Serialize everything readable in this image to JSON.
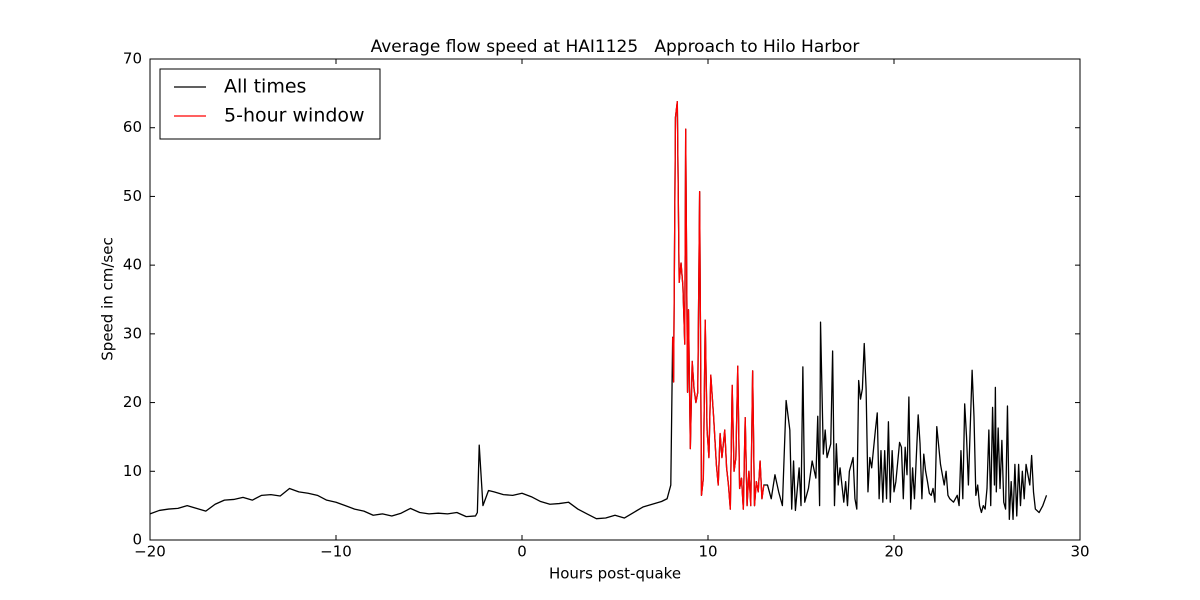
{
  "chart_data": {
    "type": "line",
    "title": "Average flow speed at HAI1125   Approach to Hilo Harbor",
    "x_label": "Hours post-quake",
    "y_label": "Speed in cm/sec",
    "xlim": [
      -20,
      30
    ],
    "ylim": [
      0,
      70
    ],
    "xticks": [
      {
        "value": -20,
        "label": "−20"
      },
      {
        "value": -10,
        "label": "−10"
      },
      0,
      10,
      20,
      30
    ],
    "yticks": [
      0,
      10,
      20,
      30,
      40,
      50,
      60,
      70
    ],
    "legend": "upper left",
    "series": [
      {
        "name": "All times",
        "color": "#000000",
        "x": [
          -20,
          -19.5,
          -19,
          -18.5,
          -18,
          -17.5,
          -17,
          -16.5,
          -16,
          -15.5,
          -15,
          -14.5,
          -14,
          -13.5,
          -13,
          -12.5,
          -12,
          -11.5,
          -11,
          -10.5,
          -10,
          -9.5,
          -9,
          -8.5,
          -8,
          -7.5,
          -7,
          -6.5,
          -6,
          -5.5,
          -5,
          -4.5,
          -4,
          -3.5,
          -3,
          -2.5,
          -2.4,
          -2.3,
          -2.1,
          -1.8,
          -1.5,
          -1,
          -0.5,
          0,
          0.5,
          1,
          1.5,
          2,
          2.5,
          3,
          3.5,
          4,
          4.5,
          5,
          5.5,
          6,
          6.5,
          7,
          7.5,
          7.8,
          8.0,
          8.1,
          8.15,
          8.25,
          8.35,
          8.45,
          8.55,
          8.65,
          8.75,
          8.8,
          8.9,
          8.95,
          9.05,
          9.15,
          9.25,
          9.35,
          9.45,
          9.55,
          9.65,
          9.75,
          9.85,
          9.95,
          10.05,
          10.15,
          10.3,
          10.45,
          10.55,
          10.65,
          10.75,
          10.9,
          11.0,
          11.1,
          11.2,
          11.3,
          11.4,
          11.5,
          11.6,
          11.7,
          11.8,
          11.9,
          12.0,
          12.1,
          12.2,
          12.3,
          12.4,
          12.5,
          12.6,
          12.7,
          12.8,
          12.9,
          13.0,
          13.2,
          13.4,
          13.6,
          13.8,
          14.0,
          14.2,
          14.4,
          14.5,
          14.6,
          14.7,
          14.9,
          15.0,
          15.1,
          15.2,
          15.4,
          15.6,
          15.8,
          15.9,
          16.0,
          16.05,
          16.2,
          16.3,
          16.4,
          16.6,
          16.7,
          16.8,
          16.9,
          17.0,
          17.1,
          17.3,
          17.4,
          17.5,
          17.6,
          17.8,
          17.9,
          18.0,
          18.1,
          18.2,
          18.3,
          18.4,
          18.5,
          18.6,
          18.7,
          18.8,
          19.0,
          19.1,
          19.2,
          19.3,
          19.4,
          19.5,
          19.6,
          19.7,
          19.8,
          19.9,
          20.0,
          20.1,
          20.3,
          20.4,
          20.5,
          20.6,
          20.7,
          20.8,
          20.9,
          21.0,
          21.1,
          21.3,
          21.4,
          21.5,
          21.6,
          21.7,
          21.8,
          21.9,
          22.0,
          22.1,
          22.2,
          22.3,
          22.5,
          22.6,
          22.7,
          22.8,
          22.9,
          23.0,
          23.2,
          23.4,
          23.5,
          23.6,
          23.7,
          23.8,
          23.9,
          24.0,
          24.1,
          24.2,
          24.3,
          24.4,
          24.5,
          24.6,
          24.7,
          24.8,
          24.9,
          25.0,
          25.1,
          25.2,
          25.3,
          25.4,
          25.45,
          25.5,
          25.6,
          25.7,
          25.8,
          25.9,
          26.0,
          26.1,
          26.2,
          26.3,
          26.4,
          26.5,
          26.6,
          26.7,
          26.8,
          26.9,
          27.0,
          27.1,
          27.3,
          27.4,
          27.5,
          27.6,
          27.8,
          28.0,
          28.2
        ],
        "values": [
          3.8,
          4.3,
          4.5,
          4.6,
          5.0,
          4.6,
          4.2,
          5.2,
          5.8,
          5.9,
          6.2,
          5.8,
          6.5,
          6.6,
          6.4,
          7.5,
          7.0,
          6.8,
          6.5,
          5.8,
          5.5,
          5.0,
          4.5,
          4.2,
          3.6,
          3.8,
          3.5,
          3.9,
          4.6,
          4.0,
          3.8,
          3.9,
          3.8,
          4.0,
          3.4,
          3.5,
          4.0,
          13.8,
          5.0,
          7.2,
          7.0,
          6.6,
          6.5,
          6.8,
          6.3,
          5.6,
          5.2,
          5.3,
          5.5,
          4.5,
          3.8,
          3.1,
          3.2,
          3.6,
          3.2,
          4.0,
          4.8,
          5.2,
          5.6,
          6.0,
          8.0,
          29.5,
          23,
          61.5,
          63.8,
          37.5,
          40.3,
          37,
          28.5,
          59.8,
          21.5,
          33.5,
          13.3,
          26,
          22,
          20,
          21.5,
          50.7,
          6.5,
          9,
          32,
          16,
          12,
          24,
          18,
          11,
          8,
          15.5,
          12,
          16,
          10.5,
          8,
          4.5,
          22.5,
          10,
          12,
          25.3,
          7.5,
          9,
          4.5,
          17.8,
          5,
          10,
          5,
          24.6,
          5,
          8.5,
          7,
          11.5,
          6,
          8,
          8,
          6,
          9.5,
          7,
          5,
          20.3,
          16,
          4.5,
          11.5,
          4.3,
          10.5,
          5,
          25.2,
          5.5,
          7.5,
          11.5,
          9,
          18,
          5,
          31.7,
          12.5,
          16,
          12,
          14,
          27.5,
          5,
          14,
          8,
          10.5,
          5.5,
          8.5,
          5,
          10,
          12,
          6,
          4.5,
          23.2,
          20.5,
          22,
          28.6,
          22,
          7,
          12,
          10.5,
          16,
          18.5,
          6,
          13,
          5.5,
          13,
          6,
          17.2,
          5.5,
          13,
          7,
          8.5,
          14.2,
          13.5,
          6,
          13.5,
          9.5,
          20.8,
          4.5,
          10.5,
          6,
          18.2,
          14,
          6,
          12.5,
          10,
          8.5,
          6.8,
          6.5,
          7.5,
          5.5,
          16.5,
          11,
          9.5,
          8,
          10,
          6.5,
          6,
          5.5,
          6.5,
          5,
          13,
          6,
          19.8,
          15,
          8,
          16.5,
          24.7,
          18,
          6.5,
          8,
          5,
          4,
          5,
          4.5,
          7.5,
          16,
          5,
          19.3,
          8,
          22.2,
          7,
          16.3,
          7.5,
          14.5,
          5.5,
          4.5,
          19.5,
          3,
          8.5,
          3,
          11,
          3.5,
          11,
          5,
          10,
          6,
          11,
          8,
          12.3,
          7,
          4.5,
          4,
          5,
          6.5
        ]
      },
      {
        "name": "5-hour window",
        "color": "#ff0000",
        "x": [
          8.1,
          8.15,
          8.25,
          8.35,
          8.45,
          8.55,
          8.65,
          8.75,
          8.8,
          8.9,
          8.95,
          9.05,
          9.15,
          9.25,
          9.35,
          9.45,
          9.55,
          9.65,
          9.75,
          9.85,
          9.95,
          10.05,
          10.15,
          10.3,
          10.45,
          10.55,
          10.65,
          10.75,
          10.9,
          11.0,
          11.1,
          11.2,
          11.3,
          11.4,
          11.5,
          11.6,
          11.7,
          11.8,
          11.9,
          12.0,
          12.1,
          12.2,
          12.3,
          12.4,
          12.5,
          12.6,
          12.7,
          12.8,
          12.9,
          13.0
        ],
        "values": [
          29.5,
          23,
          61.5,
          63.8,
          37.5,
          40.3,
          37,
          28.5,
          59.8,
          21.5,
          33.5,
          13.3,
          26,
          22,
          20,
          21.5,
          50.7,
          6.5,
          9,
          32,
          16,
          12,
          24,
          18,
          11,
          8,
          15.5,
          12,
          16,
          10.5,
          8,
          4.5,
          22.5,
          10,
          12,
          25.3,
          7.5,
          9,
          4.5,
          17.8,
          5,
          10,
          5,
          24.6,
          5,
          8.5,
          7,
          11.5,
          6,
          8
        ]
      }
    ]
  }
}
